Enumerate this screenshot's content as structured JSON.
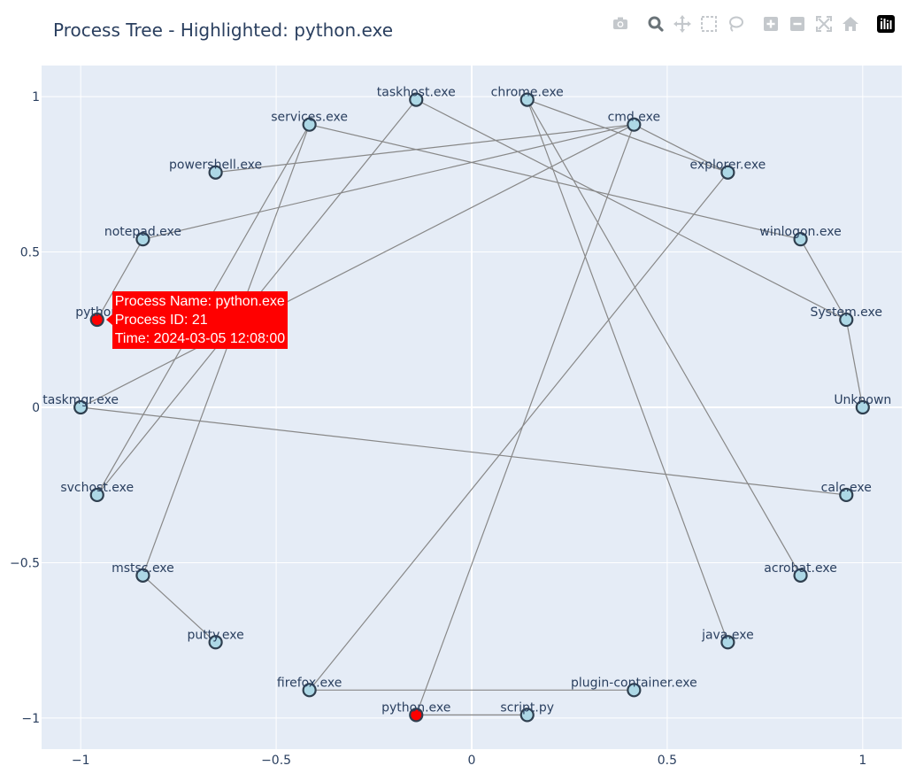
{
  "chart_data": {
    "type": "network",
    "title": "Process Tree - Highlighted: python.exe",
    "xlim": [
      -1.1,
      1.1
    ],
    "ylim": [
      -1.1,
      1.1
    ],
    "x_ticks": [
      {
        "value": -1,
        "label": "−1"
      },
      {
        "value": -0.5,
        "label": "−0.5"
      },
      {
        "value": 0,
        "label": "0"
      },
      {
        "value": 0.5,
        "label": "0.5"
      },
      {
        "value": 1,
        "label": "1"
      }
    ],
    "y_ticks": [
      {
        "value": -1,
        "label": "−1"
      },
      {
        "value": -0.5,
        "label": "−0.5"
      },
      {
        "value": 0,
        "label": "0"
      },
      {
        "value": 0.5,
        "label": "0.5"
      },
      {
        "value": 1,
        "label": "1"
      }
    ],
    "grid": true,
    "nodes": [
      {
        "id": "unknown",
        "label": "Unknown",
        "x": 1.0,
        "y": 0.0,
        "highlighted": false
      },
      {
        "id": "system",
        "label": "System.exe",
        "x": 0.958,
        "y": 0.282,
        "highlighted": false
      },
      {
        "id": "winlogon",
        "label": "winlogon.exe",
        "x": 0.841,
        "y": 0.541,
        "highlighted": false
      },
      {
        "id": "explorer",
        "label": "explorer.exe",
        "x": 0.655,
        "y": 0.756,
        "highlighted": false
      },
      {
        "id": "cmd",
        "label": "cmd.exe",
        "x": 0.415,
        "y": 0.91,
        "highlighted": false
      },
      {
        "id": "chrome",
        "label": "chrome.exe",
        "x": 0.142,
        "y": 0.99,
        "highlighted": false
      },
      {
        "id": "taskhost",
        "label": "taskhost.exe",
        "x": -0.142,
        "y": 0.99,
        "highlighted": false
      },
      {
        "id": "services",
        "label": "services.exe",
        "x": -0.415,
        "y": 0.91,
        "highlighted": false
      },
      {
        "id": "powershell",
        "label": "powershell.exe",
        "x": -0.655,
        "y": 0.756,
        "highlighted": false
      },
      {
        "id": "notepad",
        "label": "notepad.exe",
        "x": -0.841,
        "y": 0.541,
        "highlighted": false
      },
      {
        "id": "python_a",
        "label": "python",
        "x": -0.958,
        "y": 0.282,
        "highlighted": true
      },
      {
        "id": "taskmgr",
        "label": "taskmgr.exe",
        "x": -1.0,
        "y": 0.0,
        "highlighted": false
      },
      {
        "id": "svchost",
        "label": "svchost.exe",
        "x": -0.958,
        "y": -0.282,
        "highlighted": false
      },
      {
        "id": "mstsc",
        "label": "mstsc.exe",
        "x": -0.841,
        "y": -0.541,
        "highlighted": false
      },
      {
        "id": "putty",
        "label": "putty.exe",
        "x": -0.655,
        "y": -0.756,
        "highlighted": false
      },
      {
        "id": "firefox",
        "label": "firefox.exe",
        "x": -0.415,
        "y": -0.91,
        "highlighted": false
      },
      {
        "id": "python_b",
        "label": "python.exe",
        "x": -0.142,
        "y": -0.99,
        "highlighted": true
      },
      {
        "id": "script",
        "label": "script.py",
        "x": 0.142,
        "y": -0.99,
        "highlighted": false
      },
      {
        "id": "plugin",
        "label": "plugin-container.exe",
        "x": 0.415,
        "y": -0.91,
        "highlighted": false
      },
      {
        "id": "java",
        "label": "java.exe",
        "x": 0.655,
        "y": -0.756,
        "highlighted": false
      },
      {
        "id": "acrobat",
        "label": "acrobat.exe",
        "x": 0.841,
        "y": -0.541,
        "highlighted": false
      },
      {
        "id": "calc",
        "label": "calc.exe",
        "x": 0.958,
        "y": -0.282,
        "highlighted": false
      }
    ],
    "edges": [
      [
        "unknown",
        "system"
      ],
      [
        "system",
        "winlogon"
      ],
      [
        "system",
        "taskhost"
      ],
      [
        "winlogon",
        "services"
      ],
      [
        "explorer",
        "chrome"
      ],
      [
        "explorer",
        "cmd"
      ],
      [
        "explorer",
        "firefox"
      ],
      [
        "cmd",
        "powershell"
      ],
      [
        "cmd",
        "notepad"
      ],
      [
        "cmd",
        "python_b"
      ],
      [
        "cmd",
        "taskmgr"
      ],
      [
        "chrome",
        "acrobat"
      ],
      [
        "chrome",
        "java"
      ],
      [
        "taskhost",
        "svchost"
      ],
      [
        "services",
        "mstsc"
      ],
      [
        "services",
        "svchost"
      ],
      [
        "notepad",
        "python_a"
      ],
      [
        "taskmgr",
        "calc"
      ],
      [
        "mstsc",
        "putty"
      ],
      [
        "firefox",
        "plugin"
      ],
      [
        "python_b",
        "script"
      ]
    ],
    "colors": {
      "node_fill": "#add8e6",
      "node_highlight": "#ff0000",
      "node_outline": "#2f3f4f",
      "edge": "#888888",
      "plot_bg": "#e5ecf6",
      "grid": "#ffffff",
      "text": "#2a3f5f"
    },
    "tooltip": {
      "target": "python_a",
      "lines": [
        "Process Name: python.exe",
        "Process ID: 21",
        "Time: 2024-03-05 12:08:00"
      ]
    }
  },
  "modebar": {
    "buttons": [
      {
        "name": "camera-icon",
        "title": "Download plot as a png"
      },
      {
        "name": "zoom-icon",
        "title": "Zoom"
      },
      {
        "name": "pan-icon",
        "title": "Pan"
      },
      {
        "name": "box-select-icon",
        "title": "Box Select"
      },
      {
        "name": "lasso-select-icon",
        "title": "Lasso Select"
      },
      {
        "name": "zoom-in-icon",
        "title": "Zoom in"
      },
      {
        "name": "zoom-out-icon",
        "title": "Zoom out"
      },
      {
        "name": "autoscale-icon",
        "title": "Autoscale"
      },
      {
        "name": "reset-axes-icon",
        "title": "Reset axes"
      },
      {
        "name": "plotly-logo-icon",
        "title": "Produced with Plotly"
      }
    ]
  }
}
